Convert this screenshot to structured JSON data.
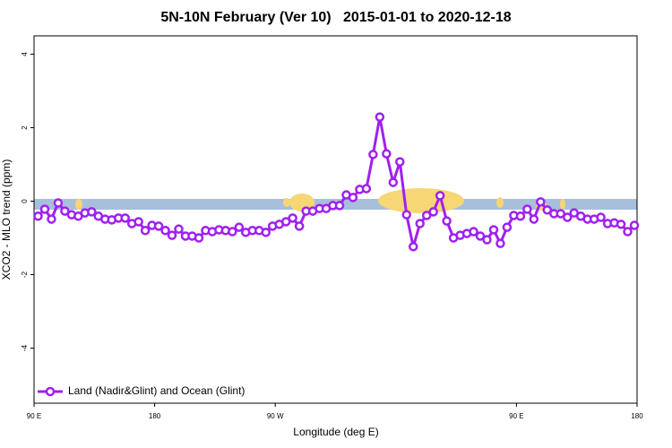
{
  "chart_data": {
    "type": "line",
    "title": "5N-10N February (Ver 10)   2015-01-01 to 2020-12-18",
    "xlabel": "Longitude (deg E)",
    "ylabel": "XCO2 - MLO trend (ppm)",
    "xlim": [
      90,
      540
    ],
    "ylim": [
      -5.5,
      4.5
    ],
    "xticks": [
      {
        "value": 90,
        "label": "90 E"
      },
      {
        "value": 180,
        "label": "180"
      },
      {
        "value": 270,
        "label": "90 W"
      },
      {
        "value": 450,
        "label": "90 E"
      },
      {
        "value": 540,
        "label": "180"
      }
    ],
    "yticks": [
      -4,
      -2,
      0,
      2,
      4
    ],
    "legend": "bottom-left",
    "x": [
      93,
      98,
      103,
      108,
      113,
      118,
      123,
      128,
      133,
      138,
      143,
      148,
      153,
      158,
      163,
      168,
      173,
      178,
      183,
      188,
      193,
      198,
      203,
      208,
      213,
      218,
      223,
      228,
      233,
      238,
      243,
      248,
      253,
      258,
      263,
      268,
      273,
      278,
      283,
      288,
      293,
      298,
      303,
      308,
      313,
      318,
      323,
      328,
      333,
      338,
      343,
      348,
      353,
      358,
      363,
      368,
      373,
      378,
      383,
      388,
      393,
      398,
      403,
      408,
      413,
      418,
      423,
      428,
      433,
      438,
      443,
      448,
      453,
      458,
      463,
      468,
      473,
      478,
      483,
      488,
      493,
      498,
      503,
      508,
      513,
      518,
      523,
      528,
      533,
      538
    ],
    "series": [
      {
        "name": "Land (Nadir&Glint) and Ocean (Glint)",
        "color": "#a020f0",
        "values": [
          -0.41,
          -0.22,
          -0.49,
          -0.05,
          -0.27,
          -0.37,
          -0.41,
          -0.32,
          -0.29,
          -0.41,
          -0.49,
          -0.51,
          -0.46,
          -0.46,
          -0.61,
          -0.56,
          -0.8,
          -0.66,
          -0.68,
          -0.8,
          -0.93,
          -0.76,
          -0.95,
          -0.95,
          -1.0,
          -0.8,
          -0.83,
          -0.78,
          -0.8,
          -0.83,
          -0.71,
          -0.85,
          -0.8,
          -0.8,
          -0.85,
          -0.68,
          -0.63,
          -0.56,
          -0.46,
          -0.68,
          -0.27,
          -0.27,
          -0.2,
          -0.2,
          -0.12,
          -0.12,
          0.17,
          0.1,
          0.32,
          0.34,
          1.27,
          2.29,
          1.29,
          0.51,
          1.07,
          -0.37,
          -1.24,
          -0.61,
          -0.39,
          -0.29,
          0.15,
          -0.54,
          -1.0,
          -0.93,
          -0.88,
          -0.83,
          -0.95,
          -1.05,
          -0.78,
          -1.15,
          -0.71,
          -0.39,
          -0.41,
          -0.22,
          -0.49,
          -0.02,
          -0.24,
          -0.34,
          -0.34,
          -0.44,
          -0.32,
          -0.41,
          -0.49,
          -0.49,
          -0.44,
          -0.61,
          -0.59,
          -0.63,
          -0.83,
          -0.66
        ]
      }
    ]
  }
}
